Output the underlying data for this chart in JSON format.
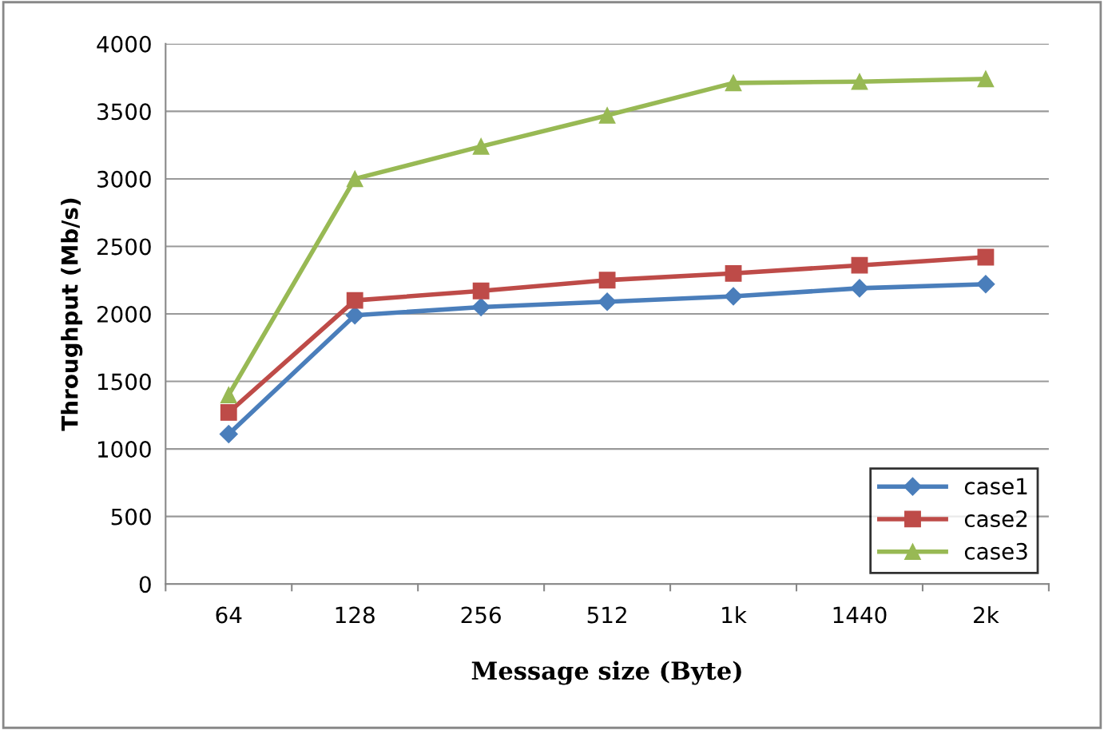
{
  "chart_data": {
    "type": "line",
    "xlabel": "Message size (Byte)",
    "ylabel": "Throughput (Mb/s)",
    "categories": [
      "64",
      "128",
      "256",
      "512",
      "1k",
      "1440",
      "2k"
    ],
    "series": [
      {
        "name": "case1",
        "color": "#4a7ebb",
        "marker": "diamond",
        "values": [
          1110,
          1990,
          2050,
          2090,
          2130,
          2190,
          2220
        ]
      },
      {
        "name": "case2",
        "color": "#be4b48",
        "marker": "square",
        "values": [
          1270,
          2100,
          2170,
          2250,
          2300,
          2360,
          2420
        ]
      },
      {
        "name": "case3",
        "color": "#98b954",
        "marker": "triangle",
        "values": [
          1400,
          3000,
          3240,
          3470,
          3710,
          3720,
          3740
        ]
      }
    ],
    "ylim": [
      0,
      4000
    ],
    "yticks": [
      0,
      500,
      1000,
      1500,
      2000,
      2500,
      3000,
      3500,
      4000
    ],
    "grid": "y",
    "legend": "bottom right",
    "line_style": "solid"
  }
}
